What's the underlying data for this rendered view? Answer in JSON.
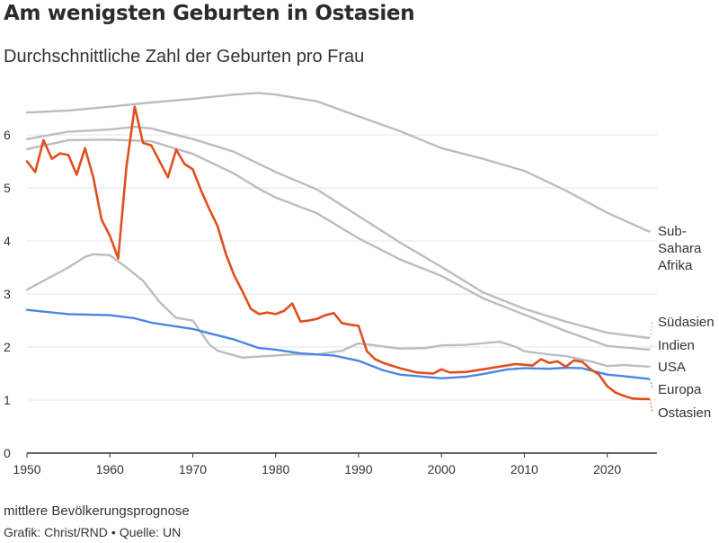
{
  "title": "Am wenigsten Geburten in Ostasien",
  "subtitle": "Durchschnittliche Zahl der Geburten pro Frau",
  "note": "mittlere Bevölkerungsprognose",
  "credit": {
    "graphic": "Grafik: Christ/RND",
    "separator": "•",
    "source": "Quelle: UN"
  },
  "colors": {
    "highlight": "#e0501e",
    "europe": "#4a86e8",
    "other": "#bdbdbd",
    "grid": "#e6e6e6",
    "axis": "#333333"
  },
  "chart_data": {
    "type": "line",
    "title": "Am wenigsten Geburten in Ostasien",
    "subtitle": "Durchschnittliche Zahl der Geburten pro Frau",
    "xlabel": "",
    "ylabel": "",
    "xlim": [
      1950,
      2026
    ],
    "ylim": [
      0,
      7
    ],
    "x_ticks": [
      1950,
      1960,
      1970,
      1980,
      1990,
      2000,
      2010,
      2020
    ],
    "y_ticks": [
      0,
      1,
      2,
      3,
      4,
      5,
      6
    ],
    "grid": "horizontal",
    "legend": "direct labels at right",
    "series": [
      {
        "name": "Sub-Sahara Afrika",
        "label_lines": [
          "Sub-",
          "Sahara",
          "Afrika"
        ],
        "color": "#bdbdbd",
        "points": [
          [
            1950,
            6.42
          ],
          [
            1955,
            6.46
          ],
          [
            1960,
            6.53
          ],
          [
            1965,
            6.61
          ],
          [
            1970,
            6.68
          ],
          [
            1975,
            6.76
          ],
          [
            1978,
            6.79
          ],
          [
            1980,
            6.76
          ],
          [
            1985,
            6.63
          ],
          [
            1990,
            6.35
          ],
          [
            1995,
            6.07
          ],
          [
            2000,
            5.75
          ],
          [
            2005,
            5.55
          ],
          [
            2010,
            5.32
          ],
          [
            2015,
            4.95
          ],
          [
            2020,
            4.53
          ],
          [
            2025,
            4.18
          ]
        ]
      },
      {
        "name": "Südasien",
        "label_lines": [
          "Südasien"
        ],
        "color": "#bdbdbd",
        "points": [
          [
            1950,
            5.92
          ],
          [
            1955,
            6.06
          ],
          [
            1960,
            6.1
          ],
          [
            1963,
            6.15
          ],
          [
            1965,
            6.12
          ],
          [
            1970,
            5.92
          ],
          [
            1975,
            5.68
          ],
          [
            1980,
            5.3
          ],
          [
            1985,
            4.97
          ],
          [
            1990,
            4.47
          ],
          [
            1995,
            3.97
          ],
          [
            2000,
            3.51
          ],
          [
            2005,
            3.03
          ],
          [
            2010,
            2.72
          ],
          [
            2015,
            2.48
          ],
          [
            2020,
            2.27
          ],
          [
            2025,
            2.17
          ]
        ]
      },
      {
        "name": "Indien",
        "label_lines": [
          "Indien"
        ],
        "color": "#bdbdbd",
        "points": [
          [
            1950,
            5.73
          ],
          [
            1955,
            5.9
          ],
          [
            1960,
            5.91
          ],
          [
            1965,
            5.88
          ],
          [
            1970,
            5.64
          ],
          [
            1975,
            5.27
          ],
          [
            1978,
            4.98
          ],
          [
            1980,
            4.82
          ],
          [
            1985,
            4.52
          ],
          [
            1990,
            4.05
          ],
          [
            1995,
            3.65
          ],
          [
            2000,
            3.34
          ],
          [
            2005,
            2.92
          ],
          [
            2010,
            2.61
          ],
          [
            2015,
            2.3
          ],
          [
            2020,
            2.02
          ],
          [
            2025,
            1.95
          ]
        ]
      },
      {
        "name": "USA",
        "label_lines": [
          "USA"
        ],
        "color": "#bdbdbd",
        "points": [
          [
            1950,
            3.08
          ],
          [
            1952,
            3.25
          ],
          [
            1955,
            3.5
          ],
          [
            1957,
            3.7
          ],
          [
            1958,
            3.75
          ],
          [
            1960,
            3.73
          ],
          [
            1962,
            3.5
          ],
          [
            1964,
            3.25
          ],
          [
            1966,
            2.85
          ],
          [
            1968,
            2.55
          ],
          [
            1970,
            2.5
          ],
          [
            1972,
            2.05
          ],
          [
            1973,
            1.93
          ],
          [
            1976,
            1.8
          ],
          [
            1978,
            1.82
          ],
          [
            1980,
            1.84
          ],
          [
            1982,
            1.86
          ],
          [
            1985,
            1.86
          ],
          [
            1988,
            1.93
          ],
          [
            1990,
            2.07
          ],
          [
            1992,
            2.03
          ],
          [
            1995,
            1.97
          ],
          [
            1998,
            1.98
          ],
          [
            2000,
            2.03
          ],
          [
            2003,
            2.04
          ],
          [
            2007,
            2.1
          ],
          [
            2009,
            2.0
          ],
          [
            2010,
            1.92
          ],
          [
            2013,
            1.86
          ],
          [
            2015,
            1.83
          ],
          [
            2018,
            1.73
          ],
          [
            2020,
            1.64
          ],
          [
            2022,
            1.66
          ],
          [
            2025,
            1.63
          ]
        ]
      },
      {
        "name": "Europa",
        "label_lines": [
          "Europa"
        ],
        "color": "#4a86e8",
        "points": [
          [
            1950,
            2.7
          ],
          [
            1953,
            2.65
          ],
          [
            1955,
            2.62
          ],
          [
            1960,
            2.6
          ],
          [
            1963,
            2.54
          ],
          [
            1965,
            2.46
          ],
          [
            1970,
            2.34
          ],
          [
            1972,
            2.26
          ],
          [
            1975,
            2.14
          ],
          [
            1978,
            1.98
          ],
          [
            1980,
            1.95
          ],
          [
            1983,
            1.88
          ],
          [
            1987,
            1.84
          ],
          [
            1990,
            1.74
          ],
          [
            1993,
            1.56
          ],
          [
            1995,
            1.48
          ],
          [
            2000,
            1.41
          ],
          [
            2003,
            1.44
          ],
          [
            2005,
            1.49
          ],
          [
            2008,
            1.58
          ],
          [
            2010,
            1.6
          ],
          [
            2013,
            1.59
          ],
          [
            2015,
            1.61
          ],
          [
            2017,
            1.6
          ],
          [
            2020,
            1.48
          ],
          [
            2022,
            1.45
          ],
          [
            2025,
            1.4
          ]
        ]
      },
      {
        "name": "Ostasien",
        "label_lines": [
          "Ostasien"
        ],
        "color": "#e0501e",
        "highlight": true,
        "points": [
          [
            1950,
            5.5
          ],
          [
            1951,
            5.3
          ],
          [
            1952,
            5.9
          ],
          [
            1953,
            5.55
          ],
          [
            1954,
            5.65
          ],
          [
            1955,
            5.62
          ],
          [
            1956,
            5.25
          ],
          [
            1957,
            5.75
          ],
          [
            1958,
            5.2
          ],
          [
            1959,
            4.4
          ],
          [
            1960,
            4.1
          ],
          [
            1961,
            3.67
          ],
          [
            1962,
            5.4
          ],
          [
            1963,
            6.53
          ],
          [
            1964,
            5.85
          ],
          [
            1965,
            5.8
          ],
          [
            1967,
            5.2
          ],
          [
            1968,
            5.72
          ],
          [
            1969,
            5.45
          ],
          [
            1970,
            5.35
          ],
          [
            1971,
            4.95
          ],
          [
            1972,
            4.6
          ],
          [
            1973,
            4.28
          ],
          [
            1974,
            3.75
          ],
          [
            1975,
            3.35
          ],
          [
            1976,
            3.05
          ],
          [
            1977,
            2.72
          ],
          [
            1978,
            2.62
          ],
          [
            1979,
            2.65
          ],
          [
            1980,
            2.62
          ],
          [
            1981,
            2.68
          ],
          [
            1982,
            2.82
          ],
          [
            1983,
            2.48
          ],
          [
            1984,
            2.5
          ],
          [
            1985,
            2.53
          ],
          [
            1986,
            2.6
          ],
          [
            1987,
            2.64
          ],
          [
            1988,
            2.45
          ],
          [
            1989,
            2.42
          ],
          [
            1990,
            2.4
          ],
          [
            1991,
            1.92
          ],
          [
            1992,
            1.77
          ],
          [
            1993,
            1.7
          ],
          [
            1995,
            1.6
          ],
          [
            1997,
            1.52
          ],
          [
            1999,
            1.5
          ],
          [
            2000,
            1.58
          ],
          [
            2001,
            1.52
          ],
          [
            2003,
            1.53
          ],
          [
            2005,
            1.58
          ],
          [
            2007,
            1.63
          ],
          [
            2009,
            1.68
          ],
          [
            2011,
            1.65
          ],
          [
            2012,
            1.77
          ],
          [
            2013,
            1.7
          ],
          [
            2014,
            1.73
          ],
          [
            2015,
            1.63
          ],
          [
            2016,
            1.75
          ],
          [
            2017,
            1.72
          ],
          [
            2018,
            1.58
          ],
          [
            2019,
            1.48
          ],
          [
            2020,
            1.26
          ],
          [
            2021,
            1.14
          ],
          [
            2022,
            1.08
          ],
          [
            2023,
            1.03
          ],
          [
            2024,
            1.02
          ],
          [
            2025,
            1.02
          ]
        ]
      }
    ]
  }
}
